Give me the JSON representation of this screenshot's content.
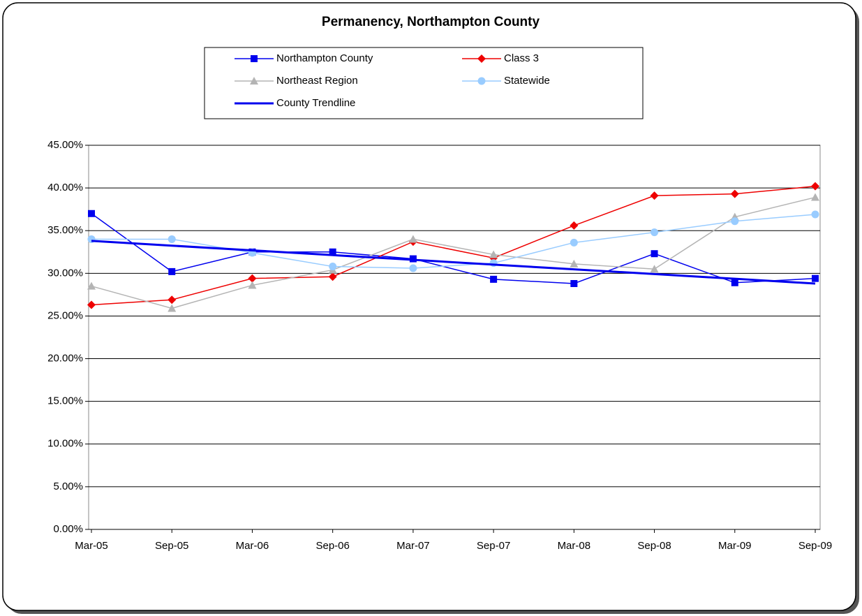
{
  "chart_data": {
    "type": "line",
    "title": "Permanency, Northampton County",
    "categories": [
      "Mar-05",
      "Sep-05",
      "Mar-06",
      "Sep-06",
      "Mar-07",
      "Sep-07",
      "Mar-08",
      "Sep-08",
      "Mar-09",
      "Sep-09"
    ],
    "series": [
      {
        "name": "Northampton County",
        "color": "#0000ee",
        "marker": "square",
        "width": 1.5,
        "values": [
          37.0,
          30.2,
          32.5,
          32.5,
          31.7,
          29.3,
          28.8,
          32.3,
          28.9,
          29.4
        ]
      },
      {
        "name": "Class 3",
        "color": "#ee0000",
        "marker": "diamond",
        "width": 1.5,
        "values": [
          26.3,
          26.9,
          29.4,
          29.6,
          33.7,
          31.8,
          35.6,
          39.1,
          39.3,
          40.2
        ]
      },
      {
        "name": "Northeast Region",
        "color": "#b4b4b4",
        "marker": "triangle",
        "width": 1.5,
        "values": [
          28.5,
          25.9,
          28.6,
          30.4,
          34.0,
          32.2,
          31.1,
          30.5,
          36.6,
          38.9
        ]
      },
      {
        "name": "Statewide",
        "color": "#99ccff",
        "marker": "circle",
        "width": 1.5,
        "values": [
          34.0,
          34.0,
          32.4,
          30.8,
          30.6,
          31.2,
          33.6,
          34.8,
          36.1,
          36.9
        ]
      },
      {
        "name": "County Trendline",
        "color": "#0000ee",
        "marker": null,
        "width": 3,
        "values": [
          33.8,
          33.24,
          32.69,
          32.13,
          31.58,
          31.02,
          30.47,
          29.91,
          29.36,
          28.8
        ]
      }
    ],
    "ylim": [
      0,
      45
    ],
    "yticks": [
      {
        "value": 0,
        "label": "0.00%"
      },
      {
        "value": 5,
        "label": "5.00%"
      },
      {
        "value": 10,
        "label": "10.00%"
      },
      {
        "value": 15,
        "label": "15.00%"
      },
      {
        "value": 20,
        "label": "20.00%"
      },
      {
        "value": 25,
        "label": "25.00%"
      },
      {
        "value": 30,
        "label": "30.00%"
      },
      {
        "value": 35,
        "label": "35.00%"
      },
      {
        "value": 40,
        "label": "40.00%"
      },
      {
        "value": 45,
        "label": "45.00%"
      }
    ],
    "grid": true,
    "legend": "top"
  }
}
